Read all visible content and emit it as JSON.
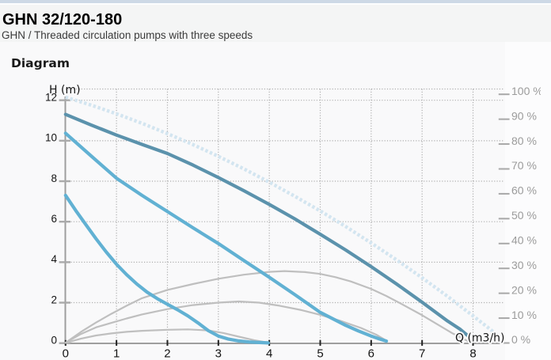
{
  "header": {
    "title": "GHN 32/120-180",
    "subtitle": "GHN / Threaded circulation pumps with three speeds"
  },
  "section": {
    "heading": "Diagram"
  },
  "colors": {
    "top_bar": "#cdd9e6",
    "header_bg": "#f4f5f5",
    "content_bg": "#f9f9fa",
    "side_bg": "#fcfcfd",
    "axis": "#9e9e9e",
    "grid": "#aeaeae",
    "left_tick": "#aaaaaa",
    "right_tick": "#a8a8a8",
    "bottom_tick": "#222222",
    "axis_label": "#141414",
    "right_label": "#9b9b9b"
  },
  "chart_data": {
    "type": "line",
    "title": "Diagram",
    "x_axis": {
      "label": "Q (m3/h)",
      "min": 0,
      "max": 8,
      "ticks": [
        0,
        1,
        2,
        3,
        4,
        5,
        6,
        7,
        8
      ]
    },
    "y_axis_left": {
      "label": "H (m)",
      "min": 0,
      "max": 12,
      "ticks": [
        0,
        2,
        4,
        6,
        8,
        10,
        12
      ]
    },
    "y_axis_right": {
      "min": 0,
      "max": 100,
      "ticks": [
        0,
        10,
        20,
        30,
        40,
        50,
        60,
        70,
        80,
        90,
        100
      ],
      "tick_suffix": " %"
    },
    "grid": true,
    "legend": false,
    "series": [
      {
        "name": "max-curve-dotted",
        "role": "envelope",
        "axis": "left",
        "color": "#d3e5f0",
        "width": 4.4,
        "dash": [
          3.4,
          2.7
        ],
        "points": [
          [
            0,
            12.15
          ],
          [
            0.5,
            11.76
          ],
          [
            1,
            11.33
          ],
          [
            1.5,
            10.86
          ],
          [
            2,
            10.35
          ],
          [
            2.5,
            9.81
          ],
          [
            3,
            9.23
          ],
          [
            3.5,
            8.61
          ],
          [
            4,
            7.95
          ],
          [
            4.5,
            7.26
          ],
          [
            5,
            6.53
          ],
          [
            5.5,
            5.76
          ],
          [
            6,
            4.95
          ],
          [
            6.5,
            4.11
          ],
          [
            7,
            3.23
          ],
          [
            7.5,
            2.31
          ],
          [
            8,
            1.35
          ],
          [
            8.3,
            0.76
          ],
          [
            8.55,
            0.25
          ]
        ]
      },
      {
        "name": "power-speed-3",
        "role": "power-curve",
        "axis": "left",
        "color": "#bfbfbf",
        "width": 2.2,
        "dash": null,
        "points": [
          [
            0,
            0.02
          ],
          [
            0.3,
            0.55
          ],
          [
            0.6,
            1.02
          ],
          [
            0.9,
            1.45
          ],
          [
            1.2,
            1.85
          ],
          [
            1.5,
            2.22
          ],
          [
            2,
            2.63
          ],
          [
            2.5,
            2.92
          ],
          [
            3,
            3.18
          ],
          [
            3.5,
            3.38
          ],
          [
            4,
            3.52
          ],
          [
            4.3,
            3.56
          ],
          [
            4.7,
            3.51
          ],
          [
            5,
            3.42
          ],
          [
            5.3,
            3.26
          ],
          [
            5.6,
            3.05
          ],
          [
            6,
            2.68
          ],
          [
            6.3,
            2.33
          ],
          [
            6.6,
            1.93
          ],
          [
            7,
            1.38
          ],
          [
            7.3,
            0.93
          ],
          [
            7.6,
            0.48
          ],
          [
            7.93,
            0.06
          ]
        ]
      },
      {
        "name": "power-speed-2",
        "role": "power-curve",
        "axis": "left",
        "color": "#bfbfbf",
        "width": 2.2,
        "dash": null,
        "points": [
          [
            0,
            0.02
          ],
          [
            0.3,
            0.45
          ],
          [
            0.6,
            0.78
          ],
          [
            0.9,
            1.0
          ],
          [
            1.2,
            1.22
          ],
          [
            1.5,
            1.42
          ],
          [
            2,
            1.68
          ],
          [
            2.5,
            1.88
          ],
          [
            3,
            2.0
          ],
          [
            3.4,
            2.06
          ],
          [
            3.8,
            2.0
          ],
          [
            4.2,
            1.85
          ],
          [
            4.6,
            1.65
          ],
          [
            5,
            1.4
          ],
          [
            5.4,
            1.1
          ],
          [
            5.8,
            0.75
          ],
          [
            6.1,
            0.42
          ],
          [
            6.3,
            0.12
          ]
        ]
      },
      {
        "name": "power-speed-1",
        "role": "power-curve",
        "axis": "left",
        "color": "#bfbfbf",
        "width": 2.2,
        "dash": null,
        "points": [
          [
            0,
            0.01
          ],
          [
            0.3,
            0.22
          ],
          [
            0.6,
            0.38
          ],
          [
            0.9,
            0.48
          ],
          [
            1.2,
            0.56
          ],
          [
            1.5,
            0.61
          ],
          [
            2,
            0.66
          ],
          [
            2.4,
            0.68
          ],
          [
            2.8,
            0.63
          ],
          [
            3.1,
            0.5
          ],
          [
            3.4,
            0.32
          ],
          [
            3.7,
            0.15
          ],
          [
            3.95,
            0.04
          ]
        ]
      },
      {
        "name": "head-speed-3",
        "role": "pump-curve",
        "axis": "left",
        "color": "#5b92ac",
        "width": 4.2,
        "dash": null,
        "points": [
          [
            0,
            11.3
          ],
          [
            0.5,
            10.78
          ],
          [
            1,
            10.28
          ],
          [
            1.5,
            9.82
          ],
          [
            2,
            9.37
          ],
          [
            2.5,
            8.8
          ],
          [
            3,
            8.18
          ],
          [
            3.5,
            7.53
          ],
          [
            4,
            6.85
          ],
          [
            4.5,
            6.14
          ],
          [
            5,
            5.38
          ],
          [
            5.5,
            4.6
          ],
          [
            6,
            3.78
          ],
          [
            6.5,
            2.92
          ],
          [
            7,
            2.02
          ],
          [
            7.5,
            1.09
          ],
          [
            7.75,
            0.68
          ],
          [
            7.93,
            0.3
          ]
        ]
      },
      {
        "name": "head-speed-2",
        "role": "pump-curve",
        "axis": "left",
        "color": "#61b1d3",
        "width": 4.2,
        "dash": null,
        "points": [
          [
            0,
            10.37
          ],
          [
            0.5,
            9.25
          ],
          [
            1,
            8.15
          ],
          [
            1.5,
            7.3
          ],
          [
            2,
            6.5
          ],
          [
            2.5,
            5.7
          ],
          [
            3,
            4.92
          ],
          [
            3.5,
            4.08
          ],
          [
            4,
            3.25
          ],
          [
            4.5,
            2.4
          ],
          [
            5,
            1.52
          ],
          [
            5.5,
            0.88
          ],
          [
            5.75,
            0.6
          ],
          [
            6,
            0.35
          ],
          [
            6.15,
            0.22
          ],
          [
            6.3,
            0.1
          ]
        ]
      },
      {
        "name": "head-speed-1",
        "role": "pump-curve",
        "axis": "left",
        "color": "#61b1d3",
        "width": 4.2,
        "dash": null,
        "points": [
          [
            0,
            7.3
          ],
          [
            0.2,
            6.55
          ],
          [
            0.4,
            5.85
          ],
          [
            0.6,
            5.15
          ],
          [
            0.8,
            4.5
          ],
          [
            1,
            3.9
          ],
          [
            1.2,
            3.38
          ],
          [
            1.4,
            2.92
          ],
          [
            1.6,
            2.52
          ],
          [
            1.8,
            2.2
          ],
          [
            2,
            1.92
          ],
          [
            2.2,
            1.65
          ],
          [
            2.4,
            1.35
          ],
          [
            2.6,
            1.0
          ],
          [
            2.8,
            0.62
          ],
          [
            3,
            0.35
          ],
          [
            3.2,
            0.2
          ],
          [
            3.4,
            0.11
          ],
          [
            3.6,
            0.06
          ],
          [
            3.8,
            0.03
          ],
          [
            3.98,
            0.01
          ]
        ]
      }
    ]
  }
}
